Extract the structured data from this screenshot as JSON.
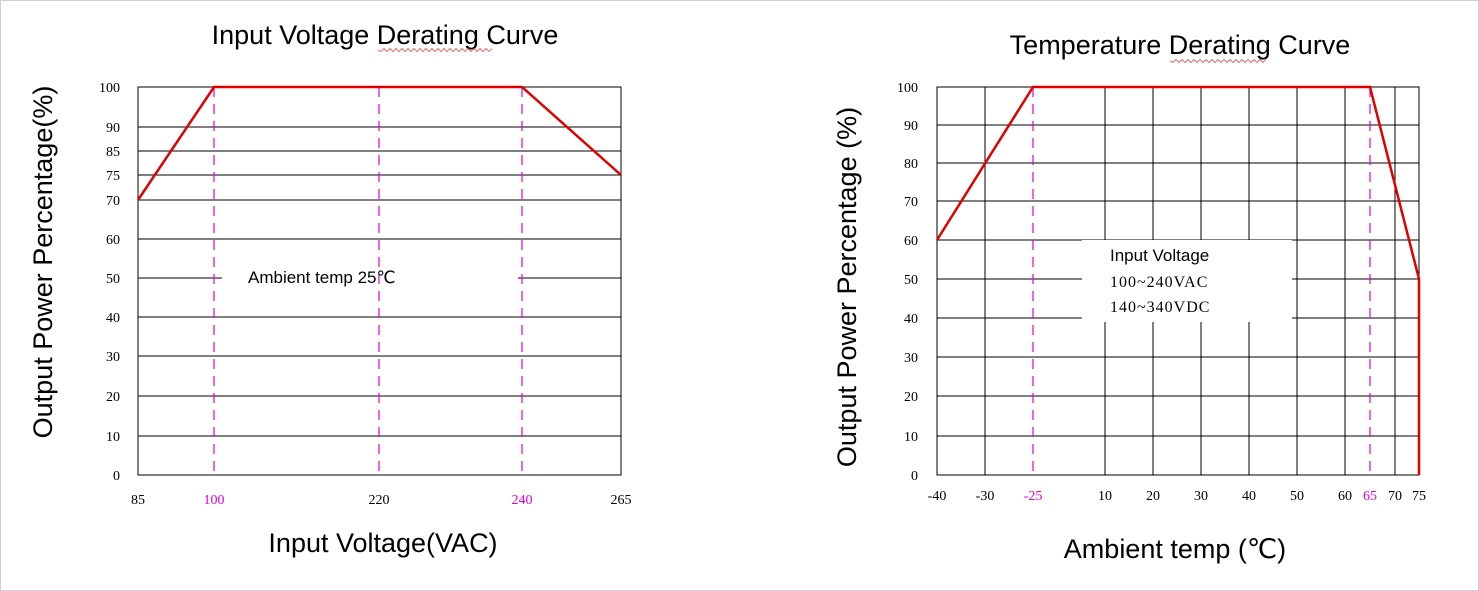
{
  "colors": {
    "curve": "#e00000",
    "highlight": "#e000e0",
    "grid": "#000000"
  },
  "chart_data": [
    {
      "type": "line",
      "title": "Input Voltage Derating Curve",
      "xlabel": "Input Voltage(VAC)",
      "ylabel": "Output Power Percentage(%)",
      "xlim": [
        85,
        265
      ],
      "ylim": [
        0,
        100
      ],
      "grid": true,
      "x_ticks": [
        {
          "value": 85,
          "label": "85",
          "highlight": false
        },
        {
          "value": 100,
          "label": "100",
          "highlight": true
        },
        {
          "value": 220,
          "label": "220",
          "highlight": false
        },
        {
          "value": 240,
          "label": "240",
          "highlight": true
        },
        {
          "value": 265,
          "label": "265",
          "highlight": false
        }
      ],
      "y_ticks": [
        {
          "value": 0,
          "label": "0"
        },
        {
          "value": 10,
          "label": "10"
        },
        {
          "value": 20,
          "label": "20"
        },
        {
          "value": 30,
          "label": "30"
        },
        {
          "value": 40,
          "label": "40"
        },
        {
          "value": 50,
          "label": "50"
        },
        {
          "value": 60,
          "label": "60"
        },
        {
          "value": 70,
          "label": "70"
        },
        {
          "value": 75,
          "label": "75"
        },
        {
          "value": 85,
          "label": "85"
        },
        {
          "value": 90,
          "label": "90"
        },
        {
          "value": 100,
          "label": "100"
        }
      ],
      "v_gridlines": [
        85,
        100,
        220,
        240,
        265
      ],
      "dashed_markers": [
        100,
        220,
        240
      ],
      "series": [
        {
          "x": [
            85,
            100,
            240,
            265
          ],
          "y": [
            70,
            100,
            100,
            75
          ]
        }
      ],
      "annotations": [
        {
          "x": 162,
          "y": 50,
          "lines": [
            "Ambient temp 25℃"
          ]
        }
      ]
    },
    {
      "type": "line",
      "title": "Temperature Derating Curve",
      "xlabel": "Ambient temp (℃)",
      "ylabel": "Output Power Percentage (%)",
      "xlim": [
        -40,
        75
      ],
      "ylim": [
        0,
        100
      ],
      "grid": true,
      "x_ticks": [
        {
          "value": -40,
          "label": "-40",
          "highlight": false
        },
        {
          "value": -30,
          "label": "-30",
          "highlight": false
        },
        {
          "value": -25,
          "label": "-25",
          "highlight": true
        },
        {
          "value": 10,
          "label": "10",
          "highlight": false
        },
        {
          "value": 20,
          "label": "20",
          "highlight": false
        },
        {
          "value": 30,
          "label": "30",
          "highlight": false
        },
        {
          "value": 40,
          "label": "40",
          "highlight": false
        },
        {
          "value": 50,
          "label": "50",
          "highlight": false
        },
        {
          "value": 60,
          "label": "60",
          "highlight": false
        },
        {
          "value": 65,
          "label": "65",
          "highlight": true
        },
        {
          "value": 70,
          "label": "70",
          "highlight": false
        },
        {
          "value": 75,
          "label": "75",
          "highlight": false
        }
      ],
      "y_ticks": [
        {
          "value": 0,
          "label": "0"
        },
        {
          "value": 10,
          "label": "10"
        },
        {
          "value": 20,
          "label": "20"
        },
        {
          "value": 30,
          "label": "30"
        },
        {
          "value": 40,
          "label": "40"
        },
        {
          "value": 50,
          "label": "50"
        },
        {
          "value": 60,
          "label": "60"
        },
        {
          "value": 70,
          "label": "70"
        },
        {
          "value": 80,
          "label": "80"
        },
        {
          "value": 90,
          "label": "90"
        },
        {
          "value": 100,
          "label": "100"
        }
      ],
      "v_gridlines": [
        -40,
        -30,
        -25,
        10,
        20,
        30,
        40,
        50,
        60,
        65,
        70,
        75
      ],
      "dashed_markers": [
        -25,
        65
      ],
      "series": [
        {
          "x": [
            -40,
            -25,
            65,
            75,
            75
          ],
          "y": [
            60,
            100,
            100,
            50,
            0
          ]
        }
      ],
      "annotations": [
        {
          "x": 27,
          "y": 52,
          "lines": [
            "Input Voltage",
            "100~240VAC",
            "140~340VDC"
          ]
        }
      ]
    }
  ]
}
